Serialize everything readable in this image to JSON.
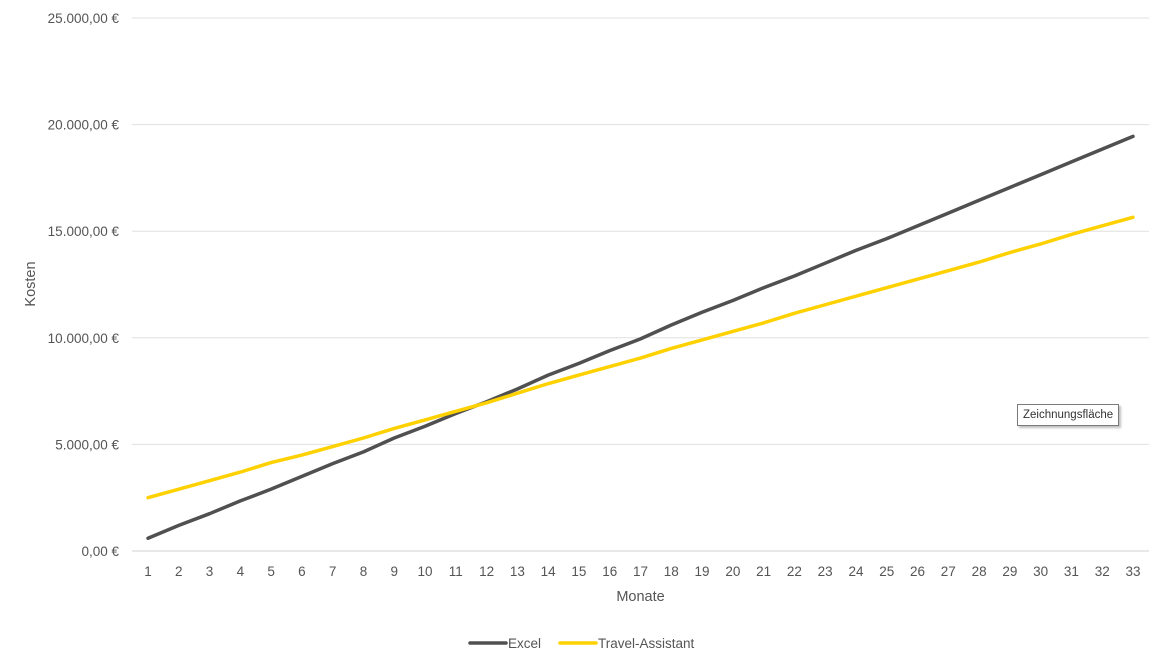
{
  "chart_data": {
    "type": "line",
    "title": "",
    "xlabel": "Monate",
    "ylabel": "Kosten",
    "categories": [
      "1",
      "2",
      "3",
      "4",
      "5",
      "6",
      "7",
      "8",
      "9",
      "10",
      "11",
      "12",
      "13",
      "14",
      "15",
      "16",
      "17",
      "18",
      "19",
      "20",
      "21",
      "22",
      "23",
      "24",
      "25",
      "26",
      "27",
      "28",
      "29",
      "30",
      "31",
      "32",
      "33"
    ],
    "ylim": [
      0,
      25000
    ],
    "yticks": [
      0,
      5000,
      10000,
      15000,
      20000,
      25000
    ],
    "ytick_labels": [
      "0,00 €",
      "5.000,00 €",
      "10.000,00 €",
      "15.000,00 €",
      "20.000,00 €",
      "25.000,00 €"
    ],
    "grid": "horizontal",
    "legend_position": "bottom",
    "series": [
      {
        "name": "Excel",
        "color": "#505050",
        "values": [
          600,
          1200,
          1750,
          2350,
          2900,
          3500,
          4100,
          4650,
          5300,
          5850,
          6450,
          7000,
          7600,
          8250,
          8800,
          9400,
          9950,
          10600,
          11200,
          11750,
          12350,
          12900,
          13500,
          14100,
          14650,
          15250,
          15850,
          16450,
          17050,
          17650,
          18250,
          18850,
          19450
        ]
      },
      {
        "name": "Travel-Assistant",
        "color": "#FFD100",
        "values": [
          2500,
          2900,
          3300,
          3700,
          4150,
          4500,
          4900,
          5300,
          5750,
          6150,
          6550,
          6950,
          7400,
          7850,
          8250,
          8650,
          9050,
          9500,
          9900,
          10300,
          10700,
          11150,
          11550,
          11950,
          12350,
          12750,
          13150,
          13550,
          14000,
          14400,
          14850,
          15250,
          15650
        ]
      }
    ]
  },
  "plot_area_hint": "Zeichnungsfläche"
}
